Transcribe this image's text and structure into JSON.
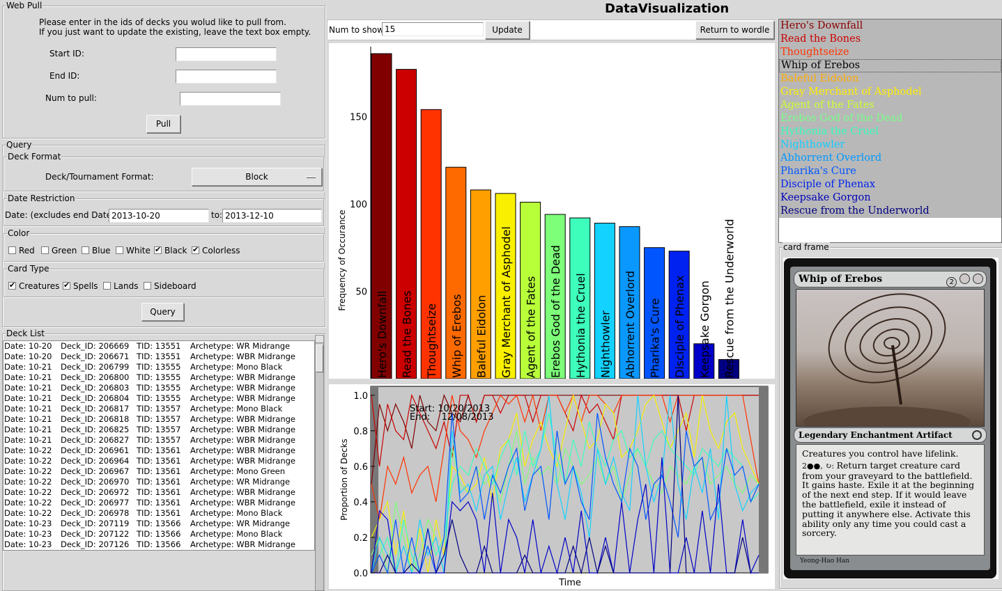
{
  "web_pull": {
    "title": "Web Pull",
    "instructions_line1": "Please enter in the ids of decks you wolud like to pull from.",
    "instructions_line2": "If you just want to update the existing, leave the text box empty.",
    "start_id_label": "Start ID:",
    "start_id_value": "",
    "end_id_label": "End ID:",
    "end_id_value": "",
    "num_label": "Num to pull:",
    "num_value": "",
    "pull_button": "Pull"
  },
  "query": {
    "title": "Query",
    "deck_format": {
      "title": "Deck Format",
      "label": "Deck/Tournament Format:",
      "selected": "Block"
    },
    "date_restriction": {
      "title": "Date Restriction",
      "label": "Date: (excludes end Date)",
      "start": "2013-10-20",
      "to_label": "to:",
      "end": "2013-12-10"
    },
    "color": {
      "title": "Color",
      "options": [
        {
          "label": "Red",
          "checked": false
        },
        {
          "label": "Green",
          "checked": false
        },
        {
          "label": "Blue",
          "checked": false
        },
        {
          "label": "White",
          "checked": false
        },
        {
          "label": "Black",
          "checked": true
        },
        {
          "label": "Colorless",
          "checked": true
        }
      ]
    },
    "card_type": {
      "title": "Card Type",
      "options": [
        {
          "label": "Creatures",
          "checked": true
        },
        {
          "label": "Spells",
          "checked": true
        },
        {
          "label": "Lands",
          "checked": false
        },
        {
          "label": "Sideboard",
          "checked": false
        }
      ]
    },
    "query_button": "Query"
  },
  "deck_list": {
    "title": "Deck List",
    "rows": [
      {
        "date": "Date: 10-20",
        "deck": "Deck_ID: 206669",
        "tid": "TID: 13551",
        "arch": "Archetype: WR Midrange"
      },
      {
        "date": "Date: 10-20",
        "deck": "Deck_ID: 206671",
        "tid": "TID: 13551",
        "arch": "Archetype: WBR Midrange"
      },
      {
        "date": "Date: 10-21",
        "deck": "Deck_ID: 206799",
        "tid": "TID: 13555",
        "arch": "Archetype: Mono Black"
      },
      {
        "date": "Date: 10-21",
        "deck": "Deck_ID: 206800",
        "tid": "TID: 13555",
        "arch": "Archetype: WBR Midrange"
      },
      {
        "date": "Date: 10-21",
        "deck": "Deck_ID: 206803",
        "tid": "TID: 13555",
        "arch": "Archetype: WBR Midrange"
      },
      {
        "date": "Date: 10-21",
        "deck": "Deck_ID: 206804",
        "tid": "TID: 13555",
        "arch": "Archetype: WBR Midrange"
      },
      {
        "date": "Date: 10-21",
        "deck": "Deck_ID: 206817",
        "tid": "TID: 13557",
        "arch": "Archetype: Mono Black"
      },
      {
        "date": "Date: 10-21",
        "deck": "Deck_ID: 206818",
        "tid": "TID: 13557",
        "arch": "Archetype: WBR Midrange"
      },
      {
        "date": "Date: 10-21",
        "deck": "Deck_ID: 206825",
        "tid": "TID: 13557",
        "arch": "Archetype: WBR Midrange"
      },
      {
        "date": "Date: 10-21",
        "deck": "Deck_ID: 206827",
        "tid": "TID: 13557",
        "arch": "Archetype: WBR Midrange"
      },
      {
        "date": "Date: 10-22",
        "deck": "Deck_ID: 206961",
        "tid": "TID: 13561",
        "arch": "Archetype: WBR Midrange"
      },
      {
        "date": "Date: 10-22",
        "deck": "Deck_ID: 206964",
        "tid": "TID: 13561",
        "arch": "Archetype: WBR Midrange"
      },
      {
        "date": "Date: 10-22",
        "deck": "Deck_ID: 206967",
        "tid": "TID: 13561",
        "arch": "Archetype: Mono Green"
      },
      {
        "date": "Date: 10-22",
        "deck": "Deck_ID: 206970",
        "tid": "TID: 13561",
        "arch": "Archetype: WR Midrange"
      },
      {
        "date": "Date: 10-22",
        "deck": "Deck_ID: 206972",
        "tid": "TID: 13561",
        "arch": "Archetype: WBR Midrange"
      },
      {
        "date": "Date: 10-22",
        "deck": "Deck_ID: 206977",
        "tid": "TID: 13561",
        "arch": "Archetype: WBR Midrange"
      },
      {
        "date": "Date: 10-22",
        "deck": "Deck_ID: 206978",
        "tid": "TID: 13561",
        "arch": "Archetype: Mono Black"
      },
      {
        "date": "Date: 10-23",
        "deck": "Deck_ID: 207119",
        "tid": "TID: 13566",
        "arch": "Archetype: WR Midrange"
      },
      {
        "date": "Date: 10-23",
        "deck": "Deck_ID: 207122",
        "tid": "TID: 13566",
        "arch": "Archetype: Mono Black"
      },
      {
        "date": "Date: 10-23",
        "deck": "Deck_ID: 207126",
        "tid": "TID: 13566",
        "arch": "Archetype: WBR Midrange"
      }
    ]
  },
  "header": {
    "title": "DataVisualization",
    "num_label": "Num to show:",
    "num_value": "15",
    "update_button": "Update",
    "return_button": "Return to wordle"
  },
  "card_list": {
    "selected_index": 3,
    "items": [
      {
        "name": "Hero's Downfall",
        "color": "#8b0000"
      },
      {
        "name": "Read the Bones",
        "color": "#cc0000"
      },
      {
        "name": "Thoughtseize",
        "color": "#ff3300"
      },
      {
        "name": "Whip of Erebos",
        "color": "#000000"
      },
      {
        "name": "Baleful Eidolon",
        "color": "#ffaa00"
      },
      {
        "name": "Gray Merchant of Asphodel",
        "color": "#ffee00"
      },
      {
        "name": "Agent of the Fates",
        "color": "#ccff33"
      },
      {
        "name": "Erebos God of the Dead",
        "color": "#77ff88"
      },
      {
        "name": "Hythonia the Cruel",
        "color": "#33ffbb"
      },
      {
        "name": "Nighthowler",
        "color": "#11ccff"
      },
      {
        "name": "Abhorrent Overlord",
        "color": "#0099ff"
      },
      {
        "name": "Pharika's Cure",
        "color": "#0055ff"
      },
      {
        "name": "Disciple of Phenax",
        "color": "#0022ee"
      },
      {
        "name": "Keepsake Gorgon",
        "color": "#0000bb"
      },
      {
        "name": "Rescue from the Underworld",
        "color": "#000080"
      }
    ]
  },
  "card_frame": {
    "title": "card frame",
    "card": {
      "name": "Whip of Erebos",
      "mana": "2",
      "type_line": "Legendary Enchantment Artifact",
      "rules_line1": "Creatures you control have lifelink.",
      "rules_line2": "Return target creature card from your graveyard to the battlefield. It gains haste. Exile it at the beginning of the next end step. If it would leave the battlefield, exile it instead of putting it anywhere else. Activate this ability only any time you could cast a sorcery.",
      "artist": "Yeong-Hao Han"
    }
  },
  "chart_data": [
    {
      "type": "bar",
      "ylabel": "Frequency of Occurance",
      "xlabel": "",
      "ylim": [
        0,
        190
      ],
      "yticks": [
        50,
        100,
        150
      ],
      "categories": [
        "Hero's Downfall",
        "Read the Bones",
        "Thoughtseize",
        "Whip of Erebos",
        "Baleful Eidolon",
        "Gray Merchant of Asphodel",
        "Agent of the Fates",
        "Erebos God of the Dead",
        "Hythonia the Cruel",
        "Nighthowler",
        "Abhorrent Overlord",
        "Pharika's Cure",
        "Disciple of Phenax",
        "Keepsake Gorgon",
        "Rescue from the Underworld"
      ],
      "values": [
        186,
        177,
        154,
        121,
        108,
        106,
        101,
        94,
        92,
        89,
        87,
        75,
        73,
        20,
        11
      ],
      "colors": [
        "#800000",
        "#cc0000",
        "#ff3300",
        "#ff6a00",
        "#ffa000",
        "#f8f000",
        "#b8ff3a",
        "#7dff7a",
        "#3dffbb",
        "#14d2ff",
        "#0a98ff",
        "#0055ff",
        "#0022f0",
        "#0000c8",
        "#000080"
      ]
    },
    {
      "type": "line",
      "xlabel": "Time",
      "ylabel": "Proportion of Decks",
      "ylim": [
        0,
        1.05
      ],
      "yticks": [
        "0.0",
        "0.2",
        "0.4",
        "0.6",
        "0.8",
        "1.0"
      ],
      "annotation": {
        "start": "Start: 10/20/2013",
        "end": "End:    12/08/2013"
      },
      "x": [
        0,
        1,
        2,
        3,
        4,
        5,
        6,
        7,
        8,
        9,
        10,
        11,
        12,
        13,
        14,
        15,
        16,
        17,
        18,
        19,
        20,
        21,
        22,
        23,
        24,
        25,
        26,
        27,
        28,
        29,
        30,
        31,
        32,
        33,
        34,
        35,
        36,
        37,
        38,
        39,
        40,
        41,
        42,
        43,
        44,
        45,
        46,
        47,
        48
      ],
      "series": [
        {
          "name": "Hero's Downfall",
          "color": "#800000",
          "values": [
            0.5,
            0.95,
            0.8,
            0.95,
            0.85,
            0.7,
            1.0,
            0.85,
            0.8,
            1.0,
            0.9,
            0.85,
            1.0,
            0.85,
            1.0,
            1.0,
            1.0,
            1.0,
            1.0,
            1.0,
            1.0,
            1.0,
            1.0,
            1.0,
            1.0,
            1.0,
            1.0,
            1.0,
            1.0,
            1.0,
            1.0,
            1.0,
            1.0,
            1.0,
            1.0,
            1.0,
            1.0,
            1.0,
            1.0,
            1.0,
            1.0,
            1.0,
            1.0,
            1.0,
            1.0,
            1.0,
            1.0,
            1.0,
            1.0
          ]
        },
        {
          "name": "Read the Bones",
          "color": "#cc0000",
          "values": [
            1.0,
            0.6,
            0.95,
            0.8,
            0.75,
            1.0,
            0.9,
            0.8,
            0.7,
            0.85,
            0.65,
            1.0,
            1.0,
            0.85,
            1.0,
            1.0,
            0.9,
            1.0,
            1.0,
            1.0,
            0.85,
            1.0,
            1.0,
            1.0,
            0.9,
            0.8,
            1.0,
            0.9,
            0.95,
            0.85,
            0.75,
            1.0,
            1.0,
            1.0,
            1.0,
            1.0,
            1.0,
            1.0,
            1.0,
            0.8,
            1.0,
            1.0,
            1.0,
            1.0,
            1.0,
            1.0,
            1.0,
            1.0,
            1.0
          ]
        },
        {
          "name": "Thoughtseize",
          "color": "#ff3300",
          "values": [
            0.5,
            0.3,
            0.6,
            0.5,
            0.65,
            0.45,
            0.55,
            0.6,
            0.4,
            0.7,
            1.0,
            0.8,
            0.75,
            0.65,
            0.8,
            0.9,
            1.0,
            0.95,
            1.0,
            0.85,
            1.0,
            0.8,
            1.0,
            1.0,
            0.9,
            1.0,
            0.85,
            1.0,
            1.0,
            0.95,
            0.9,
            1.0,
            1.0,
            1.0,
            1.0,
            1.0,
            1.0,
            0.85,
            1.0,
            1.0,
            1.0,
            1.0,
            1.0,
            1.0,
            1.0,
            1.0,
            1.0,
            0.75,
            0.5
          ]
        },
        {
          "name": "Gray Merchant of Asphodel",
          "color": "#f8f000",
          "values": [
            0.2,
            0.3,
            0.4,
            0.1,
            0.35,
            0.0,
            0.25,
            0.0,
            0.3,
            0.1,
            0.6,
            0.55,
            0.45,
            0.5,
            0.65,
            0.4,
            0.7,
            0.75,
            0.9,
            0.6,
            0.75,
            0.85,
            0.7,
            0.6,
            0.8,
            1.0,
            0.85,
            0.7,
            0.75,
            0.95,
            0.9,
            0.65,
            0.7,
            0.8,
            0.95,
            1.0,
            0.85,
            0.7,
            0.8,
            0.9,
            0.65,
            1.0,
            0.8,
            0.7,
            0.85,
            0.9,
            0.7,
            0.6,
            0.5
          ]
        },
        {
          "name": "Erebos God of the Dead",
          "color": "#7dff7a",
          "values": [
            0.1,
            0.2,
            0.0,
            0.4,
            0.2,
            0.0,
            0.1,
            0.3,
            0.2,
            0.0,
            0.7,
            0.5,
            0.45,
            0.6,
            0.5,
            0.55,
            0.4,
            0.6,
            0.8,
            0.5,
            0.65,
            0.55,
            0.6,
            0.5,
            0.7,
            0.6,
            0.5,
            0.55,
            0.65,
            0.5,
            0.6,
            0.4,
            0.55,
            0.7,
            0.6,
            0.5,
            0.45,
            0.6,
            0.55,
            0.5,
            0.6,
            0.65,
            0.5,
            0.55,
            0.6,
            0.5,
            0.45,
            0.55,
            0.5
          ]
        },
        {
          "name": "Hythonia the Cruel",
          "color": "#3dffbb",
          "values": [
            0.0,
            0.1,
            0.2,
            0.0,
            0.3,
            0.1,
            0.0,
            0.25,
            0.1,
            0.2,
            0.5,
            0.6,
            0.55,
            0.7,
            0.6,
            0.5,
            0.65,
            0.75,
            0.55,
            0.8,
            0.6,
            0.7,
            0.9,
            0.65,
            0.5,
            0.75,
            0.6,
            0.85,
            0.7,
            0.6,
            0.75,
            0.8,
            0.65,
            0.7,
            0.6,
            0.75,
            0.8,
            0.7,
            0.65,
            0.6,
            0.55,
            0.7,
            0.65,
            0.6,
            0.7,
            0.65,
            0.6,
            0.4,
            0.45
          ]
        },
        {
          "name": "Nighthowler",
          "color": "#14d2ff",
          "values": [
            0.0,
            0.2,
            0.1,
            0.0,
            0.15,
            0.0,
            0.3,
            0.1,
            0.2,
            0.0,
            0.8,
            0.45,
            0.5,
            0.35,
            0.55,
            0.6,
            0.3,
            0.5,
            0.65,
            0.4,
            0.55,
            0.7,
            1.0,
            0.5,
            0.3,
            0.6,
            0.45,
            0.2,
            0.7,
            0.5,
            0.65,
            0.45,
            0.35,
            1.0,
            0.6,
            0.4,
            0.55,
            1.0,
            0.5,
            0.3,
            0.6,
            0.45,
            0.7,
            0.3,
            1.0,
            0.5,
            0.35,
            0.45,
            0.5
          ]
        },
        {
          "name": "Pharika's Cure",
          "color": "#0055ff",
          "values": [
            0.0,
            0.1,
            0.0,
            0.3,
            0.0,
            0.2,
            0.0,
            0.15,
            0.0,
            0.2,
            0.9,
            0.4,
            0.45,
            0.6,
            0.3,
            0.55,
            0.45,
            0.6,
            0.7,
            0.35,
            0.55,
            0.6,
            0.3,
            0.8,
            0.5,
            0.6,
            0.4,
            0.3,
            0.9,
            0.65,
            0.5,
            0.4,
            0.7,
            0.6,
            0.3,
            0.5,
            0.55,
            0.4,
            0.2,
            0.8,
            0.6,
            0.65,
            0.3,
            0.4,
            0.7,
            0.55,
            0.6,
            0.4,
            0.5
          ]
        },
        {
          "name": "Keepsake Gorgon",
          "color": "#0000c8",
          "values": [
            0.0,
            0.35,
            0.3,
            0.0,
            0.0,
            0.0,
            0.0,
            0.25,
            0.0,
            0.0,
            0.4,
            0.35,
            0.4,
            0.3,
            0.0,
            0.45,
            0.0,
            0.3,
            0.2,
            0.0,
            0.3,
            0.0,
            0.15,
            0.0,
            0.2,
            0.0,
            0.35,
            0.0,
            0.0,
            0.2,
            0.0,
            0.4,
            0.0,
            0.3,
            0.5,
            0.0,
            0.65,
            0.0,
            0.0,
            0.2,
            0.0,
            0.35,
            0.0,
            0.5,
            0.0,
            0.0,
            0.3,
            0.0,
            0.1
          ]
        },
        {
          "name": "Rescue from the Underworld",
          "color": "#000080",
          "values": [
            0.0,
            0.0,
            0.1,
            0.0,
            0.0,
            0.05,
            0.0,
            0.0,
            0.0,
            0.1,
            0.3,
            0.1,
            0.0,
            0.0,
            0.15,
            0.0,
            0.0,
            0.0,
            0.0,
            0.1,
            0.0,
            0.0,
            0.0,
            0.0,
            0.0,
            0.15,
            0.0,
            0.2,
            0.0,
            0.15,
            0.0,
            0.0,
            0.0,
            0.0,
            0.0,
            0.0,
            0.0,
            0.0,
            1.0,
            0.0,
            0.0,
            0.0,
            0.0,
            0.0,
            0.0,
            0.0,
            0.2,
            0.0,
            0.0
          ]
        }
      ]
    }
  ]
}
